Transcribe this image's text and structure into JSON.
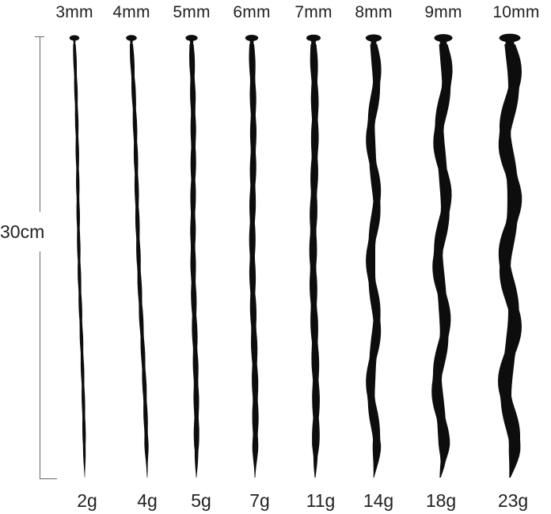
{
  "image": {
    "background": "#ffffff",
    "rod_color": "#0d0d0d"
  },
  "length_label": "30cm",
  "sounds": [
    {
      "size": "3mm",
      "weight": "2g"
    },
    {
      "size": "4mm",
      "weight": "4g"
    },
    {
      "size": "5mm",
      "weight": "5g"
    },
    {
      "size": "6mm",
      "weight": "7g"
    },
    {
      "size": "7mm",
      "weight": "11g"
    },
    {
      "size": "8mm",
      "weight": "14g"
    },
    {
      "size": "9mm",
      "weight": "18g"
    },
    {
      "size": "10mm",
      "weight": "23g"
    }
  ]
}
